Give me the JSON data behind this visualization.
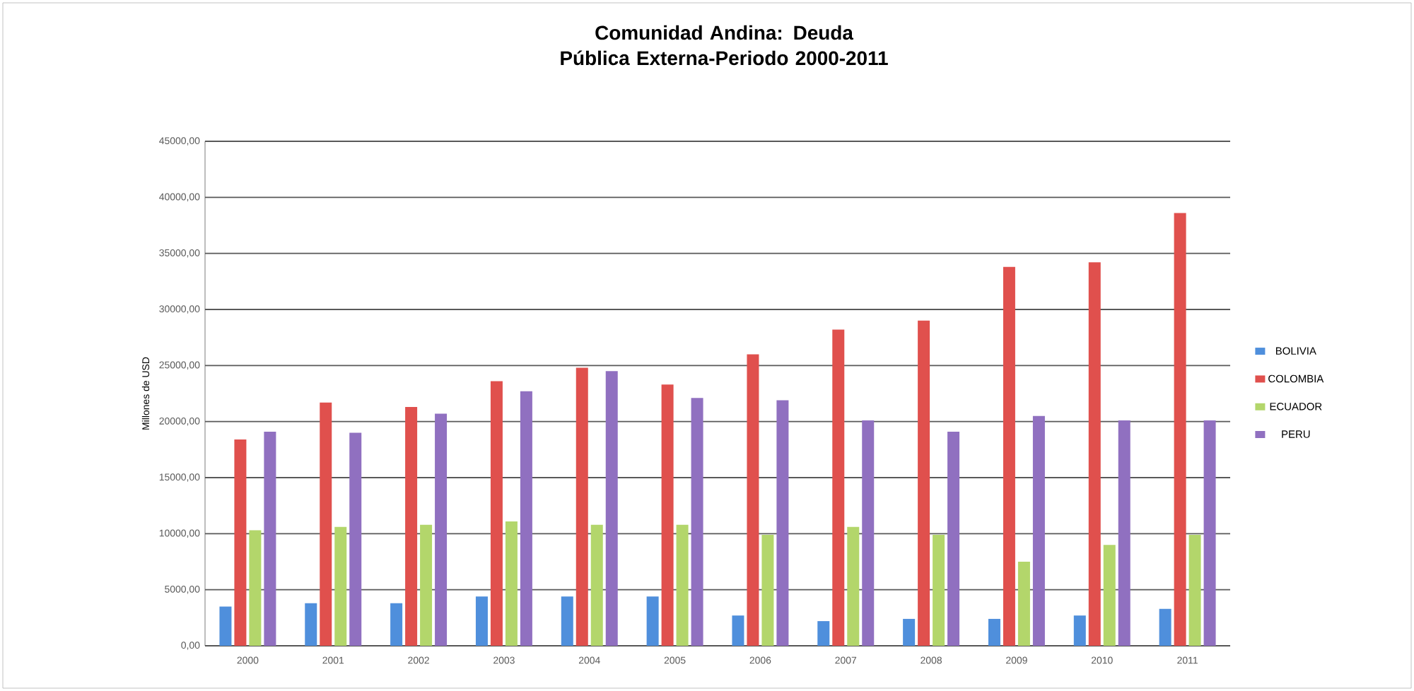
{
  "chart_data": {
    "type": "bar",
    "title": "Comunidad Andina: Deuda Pública Externa-Periodo 2000-2011",
    "ylabel": "Millones de USD",
    "categories": [
      "2000",
      "2001",
      "2002",
      "2003",
      "2004",
      "2005",
      "2006",
      "2007",
      "2008",
      "2009",
      "2010",
      "2011"
    ],
    "series": [
      {
        "name": "BOLIVIA",
        "color": "#4f8fdc",
        "values": [
          3500,
          3800,
          3800,
          4400,
          4400,
          4400,
          2700,
          2200,
          2400,
          2400,
          2700,
          3300
        ]
      },
      {
        "name": "COLOMBIA",
        "color": "#e0504d",
        "values": [
          18400,
          21700,
          21300,
          23600,
          24800,
          23300,
          26000,
          28200,
          29000,
          33800,
          34200,
          38600
        ]
      },
      {
        "name": "ECUADOR",
        "color": "#b3d66b",
        "values": [
          10300,
          10600,
          10800,
          11100,
          10800,
          10800,
          9900,
          10600,
          9900,
          7500,
          9000,
          9900
        ]
      },
      {
        "name": "PERU",
        "color": "#9070c0",
        "values": [
          19100,
          19000,
          20700,
          22700,
          24500,
          22100,
          21900,
          20100,
          19100,
          20500,
          20100,
          20100
        ]
      }
    ],
    "ylim": [
      0,
      45000
    ],
    "yticks": [
      {
        "value": 0,
        "label": "0,00"
      },
      {
        "value": 5000,
        "label": "5000,00"
      },
      {
        "value": 10000,
        "label": "10000,00"
      },
      {
        "value": 15000,
        "label": "15000,00"
      },
      {
        "value": 20000,
        "label": "20000,00"
      },
      {
        "value": 25000,
        "label": "25000,00"
      },
      {
        "value": 30000,
        "label": "30000,00"
      },
      {
        "value": 35000,
        "label": "35000,00"
      },
      {
        "value": 40000,
        "label": "40000,00"
      },
      {
        "value": 45000,
        "label": "45000,00"
      }
    ],
    "grid": "y",
    "legend": "right"
  }
}
